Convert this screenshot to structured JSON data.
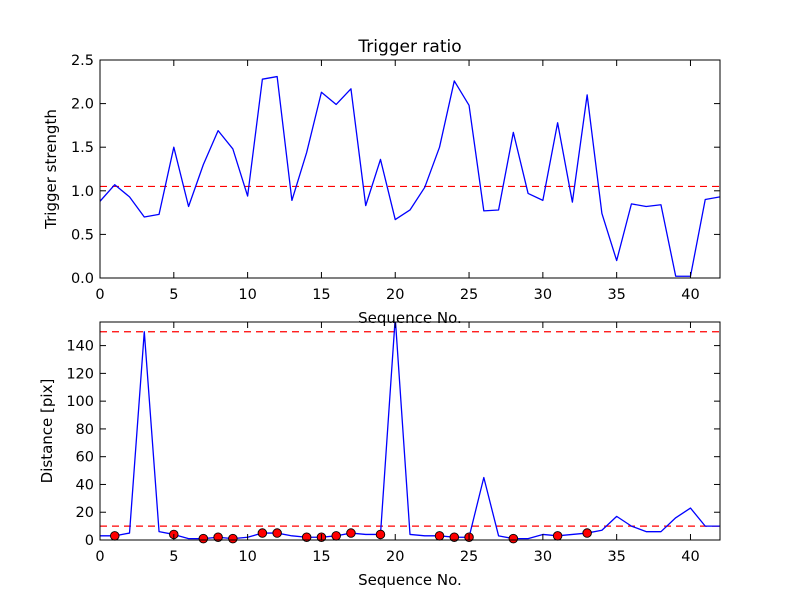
{
  "chart_data": [
    {
      "type": "line",
      "title": "Trigger ratio",
      "xlabel": "Sequence No.",
      "ylabel": "Trigger strength",
      "xlim": [
        0,
        42
      ],
      "ylim": [
        0,
        2.5
      ],
      "xticks": [
        "0",
        "5",
        "10",
        "15",
        "20",
        "25",
        "30",
        "35",
        "40"
      ],
      "yticks": [
        "0.0",
        "0.5",
        "1.0",
        "1.5",
        "2.0",
        "2.5"
      ],
      "grid": false,
      "line_color": "#0000ff",
      "threshold_color": "#ff0000",
      "thresholds": [
        1.05
      ],
      "x": [
        0,
        1,
        2,
        3,
        4,
        5,
        6,
        7,
        8,
        9,
        10,
        11,
        12,
        13,
        14,
        15,
        16,
        17,
        18,
        19,
        20,
        21,
        22,
        23,
        24,
        25,
        26,
        27,
        28,
        29,
        30,
        31,
        32,
        33,
        34,
        35,
        36,
        37,
        38,
        39,
        40,
        41,
        42
      ],
      "values": [
        0.88,
        1.07,
        0.93,
        0.7,
        0.73,
        1.5,
        0.82,
        1.3,
        1.69,
        1.48,
        0.94,
        2.28,
        2.31,
        0.89,
        1.44,
        2.13,
        1.99,
        2.17,
        0.83,
        1.36,
        0.67,
        0.78,
        1.04,
        1.5,
        2.26,
        1.98,
        0.77,
        0.78,
        1.67,
        0.97,
        0.89,
        1.78,
        0.87,
        2.1,
        0.74,
        0.2,
        0.85,
        0.82,
        0.84,
        0.02,
        0.02,
        0.9,
        0.93
      ]
    },
    {
      "type": "line",
      "title": "",
      "xlabel": "Sequence No.",
      "ylabel": "Distance [pix]",
      "xlim": [
        0,
        42
      ],
      "ylim": [
        0,
        157
      ],
      "xticks": [
        "0",
        "5",
        "10",
        "15",
        "20",
        "25",
        "30",
        "35",
        "40"
      ],
      "yticks": [
        "0",
        "20",
        "40",
        "60",
        "80",
        "100",
        "120",
        "140"
      ],
      "grid": false,
      "line_color": "#0000ff",
      "threshold_color": "#ff0000",
      "marker_color": "#ff0000",
      "thresholds": [
        150,
        10
      ],
      "x": [
        0,
        1,
        2,
        3,
        4,
        5,
        6,
        7,
        8,
        9,
        10,
        11,
        12,
        13,
        14,
        15,
        16,
        17,
        18,
        19,
        20,
        21,
        22,
        23,
        24,
        25,
        26,
        27,
        28,
        29,
        30,
        31,
        32,
        33,
        34,
        35,
        36,
        37,
        38,
        39,
        40,
        41,
        42
      ],
      "values": [
        3,
        3,
        5,
        150,
        6,
        4,
        1,
        1,
        2,
        1,
        2,
        5,
        5,
        3,
        2,
        2,
        3,
        5,
        4,
        4,
        160,
        4,
        3,
        3,
        2,
        2,
        45,
        3,
        1,
        1,
        4,
        3,
        4,
        5,
        7,
        17,
        10,
        6,
        6,
        16,
        23,
        10,
        10
      ],
      "markers": {
        "x": [
          1,
          5,
          7,
          8,
          9,
          11,
          12,
          14,
          15,
          16,
          17,
          19,
          23,
          24,
          25,
          28,
          31,
          33
        ],
        "values": [
          3,
          4,
          1,
          2,
          1,
          5,
          5,
          2,
          2,
          3,
          5,
          4,
          3,
          2,
          2,
          1,
          3,
          5
        ]
      }
    }
  ]
}
